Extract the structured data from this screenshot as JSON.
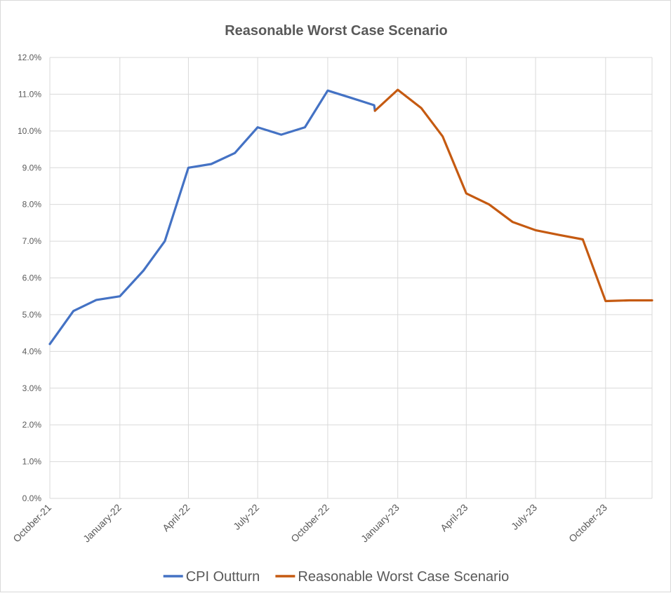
{
  "chart_data": {
    "type": "line",
    "title": "Reasonable Worst Case Scenario",
    "xlabel": "",
    "ylabel": "",
    "ylim": [
      0,
      0.12
    ],
    "y_tick_labels": [
      "0.0%",
      "1.0%",
      "2.0%",
      "3.0%",
      "4.0%",
      "5.0%",
      "6.0%",
      "7.0%",
      "8.0%",
      "9.0%",
      "10.0%",
      "11.0%",
      "12.0%"
    ],
    "x_range": [
      "October-21",
      "December-23"
    ],
    "x_tick_labels": [
      "October-21",
      "January-22",
      "April-22",
      "July-22",
      "October-22",
      "January-23",
      "April-23",
      "July-23",
      "October-23"
    ],
    "grid": true,
    "legend_position": "bottom",
    "series": [
      {
        "name": "CPI Outturn",
        "color": "#4472C4",
        "points": [
          {
            "x": "2021-10-01",
            "y": 0.042
          },
          {
            "x": "2021-11-01",
            "y": 0.051
          },
          {
            "x": "2021-12-01",
            "y": 0.054
          },
          {
            "x": "2022-01-01",
            "y": 0.055
          },
          {
            "x": "2022-02-01",
            "y": 0.062
          },
          {
            "x": "2022-03-01",
            "y": 0.07
          },
          {
            "x": "2022-04-01",
            "y": 0.09
          },
          {
            "x": "2022-05-01",
            "y": 0.091
          },
          {
            "x": "2022-06-01",
            "y": 0.094
          },
          {
            "x": "2022-07-01",
            "y": 0.101
          },
          {
            "x": "2022-08-01",
            "y": 0.099
          },
          {
            "x": "2022-09-01",
            "y": 0.101
          },
          {
            "x": "2022-10-01",
            "y": 0.111
          },
          {
            "x": "2022-11-01",
            "y": 0.109
          },
          {
            "x": "2022-12-01",
            "y": 0.107
          },
          {
            "x": "2022-12-02",
            "y": 0.1055
          }
        ]
      },
      {
        "name": "Reasonable Worst Case Scenario",
        "color": "#C55A11",
        "points": [
          {
            "x": "2022-12-02",
            "y": 0.1055
          },
          {
            "x": "2023-01-01",
            "y": 0.1112
          },
          {
            "x": "2023-02-01",
            "y": 0.1062
          },
          {
            "x": "2023-03-01",
            "y": 0.0985
          },
          {
            "x": "2023-04-01",
            "y": 0.083
          },
          {
            "x": "2023-05-01",
            "y": 0.08
          },
          {
            "x": "2023-06-01",
            "y": 0.0752
          },
          {
            "x": "2023-07-01",
            "y": 0.073
          },
          {
            "x": "2023-08-01",
            "y": 0.0717
          },
          {
            "x": "2023-09-01",
            "y": 0.0705
          },
          {
            "x": "2023-10-01",
            "y": 0.0537
          },
          {
            "x": "2023-11-01",
            "y": 0.0539
          },
          {
            "x": "2023-12-01",
            "y": 0.0539
          }
        ]
      }
    ]
  }
}
